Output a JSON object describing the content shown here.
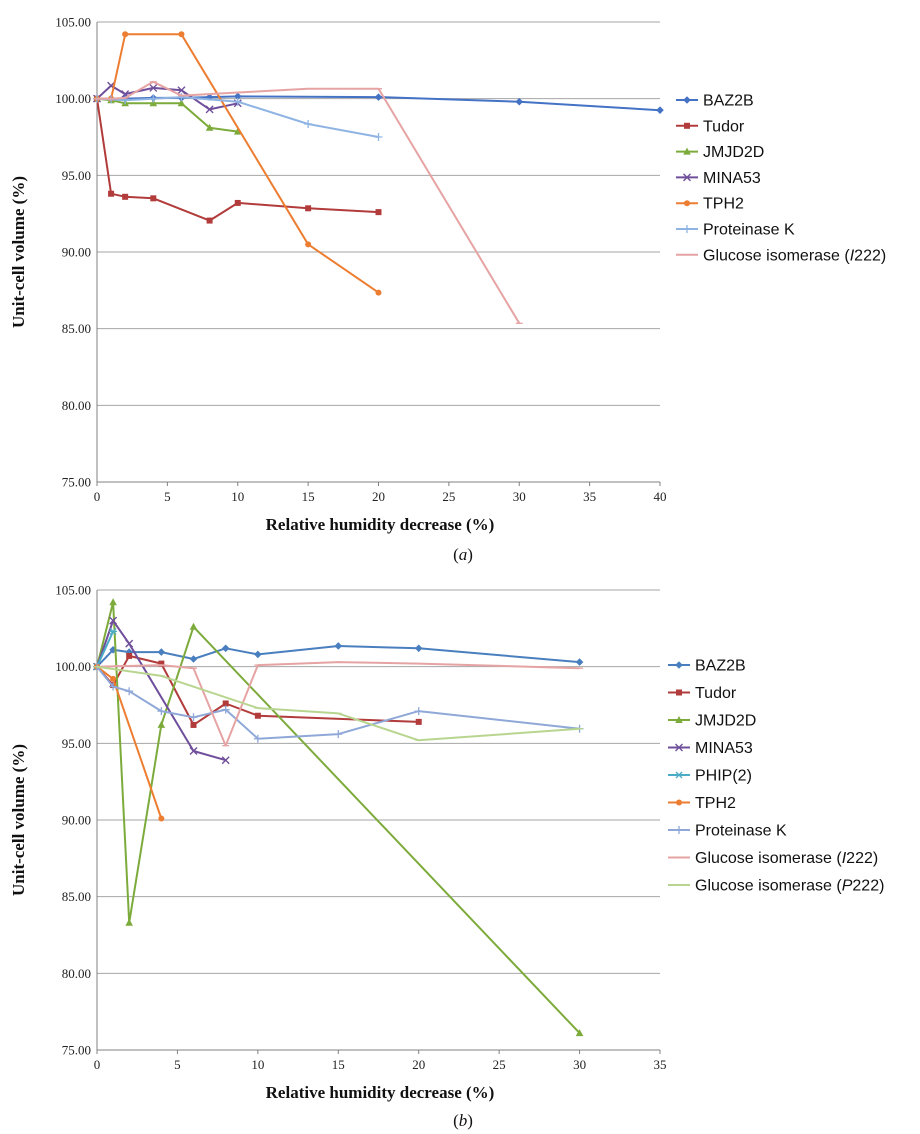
{
  "chart_data": [
    {
      "type": "line",
      "panel_label": "(a)",
      "xlabel": "Relative humidity decrease (%)",
      "ylabel": "Unit-cell volume (%)",
      "xlim": [
        0,
        40
      ],
      "ylim": [
        75,
        105
      ],
      "xticks": [
        "0",
        "5",
        "10",
        "15",
        "20",
        "25",
        "30",
        "35",
        "40"
      ],
      "yticks": [
        "75.00",
        "80.00",
        "85.00",
        "90.00",
        "95.00",
        "100.00",
        "105.00"
      ],
      "grid": "horizontal",
      "legend": "right",
      "series": [
        {
          "name": "BAZ2B",
          "marker": "diamond",
          "color": "#4472c4",
          "x": [
            0,
            1,
            2,
            4,
            6,
            8,
            10,
            20,
            30,
            40
          ],
          "y": [
            100.0,
            100.0,
            100.0,
            100.05,
            100.05,
            100.1,
            100.15,
            100.1,
            99.8,
            99.25
          ]
        },
        {
          "name": "Tudor",
          "marker": "square",
          "color": "#b23b3b",
          "x": [
            0,
            1,
            2,
            4,
            8,
            10,
            15,
            20
          ],
          "y": [
            100.0,
            93.8,
            93.6,
            93.5,
            92.05,
            93.2,
            92.85,
            92.6
          ]
        },
        {
          "name": "JMJD2D",
          "marker": "triangle",
          "color": "#7cab3b",
          "x": [
            0,
            1,
            2,
            4,
            6,
            8,
            10
          ],
          "y": [
            100.0,
            99.9,
            99.7,
            99.7,
            99.7,
            98.1,
            97.85
          ]
        },
        {
          "name": "MINA53",
          "marker": "x",
          "color": "#6f4f9b",
          "x": [
            0,
            1,
            2,
            4,
            6,
            8,
            10
          ],
          "y": [
            100.0,
            100.85,
            100.3,
            100.7,
            100.55,
            99.3,
            99.7
          ]
        },
        {
          "name": "TPH2",
          "marker": "circle",
          "color": "#ed7d31",
          "x": [
            0,
            1,
            2,
            6,
            15,
            20
          ],
          "y": [
            100.0,
            100.0,
            104.2,
            104.2,
            90.5,
            87.35
          ]
        },
        {
          "name": "Proteinase K",
          "marker": "plus",
          "color": "#8fb4e3",
          "x": [
            0,
            1,
            2,
            4,
            6,
            10,
            15,
            20
          ],
          "y": [
            100.0,
            99.95,
            99.9,
            100.0,
            100.1,
            99.8,
            98.35,
            97.5
          ]
        },
        {
          "name": "Glucose isomerase (I222)",
          "name_parts": [
            "Glucose isomerase (",
            "I",
            "222)"
          ],
          "marker": "dash",
          "color": "#e6a3a3",
          "x": [
            0,
            1,
            2,
            4,
            6,
            10,
            15,
            20,
            30
          ],
          "y": [
            100.0,
            100.0,
            100.05,
            101.1,
            100.2,
            100.4,
            100.65,
            100.65,
            85.35
          ]
        }
      ]
    },
    {
      "type": "line",
      "panel_label": "(b)",
      "xlabel": "Relative humidity decrease (%)",
      "ylabel": "Unit-cell volume (%)",
      "xlim": [
        0,
        35
      ],
      "ylim": [
        75,
        105
      ],
      "xticks": [
        "0",
        "5",
        "10",
        "15",
        "20",
        "25",
        "30",
        "35"
      ],
      "yticks": [
        "75.00",
        "80.00",
        "85.00",
        "90.00",
        "95.00",
        "100.00",
        "105.00"
      ],
      "grid": "horizontal",
      "legend": "right",
      "series": [
        {
          "name": "BAZ2B",
          "marker": "diamond",
          "color": "#4a7fbf",
          "x": [
            0,
            1,
            2,
            4,
            6,
            8,
            10,
            15,
            20,
            30
          ],
          "y": [
            100.0,
            101.1,
            100.95,
            100.95,
            100.5,
            101.2,
            100.8,
            101.35,
            101.2,
            100.3
          ]
        },
        {
          "name": "Tudor",
          "marker": "square",
          "color": "#b23b3b",
          "x": [
            0,
            1,
            2,
            4,
            6,
            8,
            10,
            20
          ],
          "y": [
            100.0,
            98.8,
            100.7,
            100.2,
            96.2,
            97.6,
            96.8,
            96.4
          ]
        },
        {
          "name": "JMJD2D",
          "marker": "triangle",
          "color": "#7cab3b",
          "x": [
            0,
            1,
            2,
            4,
            6,
            30
          ],
          "y": [
            100.0,
            104.2,
            83.3,
            96.2,
            102.6,
            76.1
          ]
        },
        {
          "name": "MINA53",
          "marker": "x",
          "color": "#6f4f9b",
          "x": [
            0,
            1,
            2,
            6,
            8
          ],
          "y": [
            100.0,
            103.0,
            101.5,
            94.5,
            93.9
          ]
        },
        {
          "name": "PHIP(2)",
          "marker": "star",
          "color": "#4bacc6",
          "x": [
            0,
            1
          ],
          "y": [
            100.0,
            102.3
          ]
        },
        {
          "name": "TPH2",
          "marker": "circle",
          "color": "#ed7d31",
          "x": [
            0,
            1,
            4
          ],
          "y": [
            100.0,
            99.2,
            90.1
          ]
        },
        {
          "name": "Proteinase K",
          "marker": "plus",
          "color": "#8fa8d8",
          "x": [
            0,
            1,
            2,
            4,
            6,
            8,
            10,
            15,
            20,
            30
          ],
          "y": [
            100.0,
            98.7,
            98.4,
            97.1,
            96.7,
            97.2,
            95.3,
            95.6,
            97.1,
            95.95
          ]
        },
        {
          "name": "Glucose isomerase (I222)",
          "name_parts": [
            "Glucose isomerase (",
            "I",
            "222)"
          ],
          "marker": "dash",
          "color": "#e6a3a3",
          "x": [
            0,
            4,
            6,
            8,
            10,
            15,
            20,
            30
          ],
          "y": [
            100.0,
            100.1,
            99.9,
            94.85,
            100.1,
            100.3,
            100.2,
            99.9
          ]
        },
        {
          "name": "Glucose isomerase (P222)",
          "name_parts": [
            "Glucose isomerase (",
            "P",
            "222)"
          ],
          "marker": "dash",
          "color": "#b8d58f",
          "x": [
            0,
            4,
            10,
            15,
            20,
            30
          ],
          "y": [
            100.0,
            99.4,
            97.3,
            96.95,
            95.2,
            95.95
          ]
        }
      ]
    }
  ]
}
